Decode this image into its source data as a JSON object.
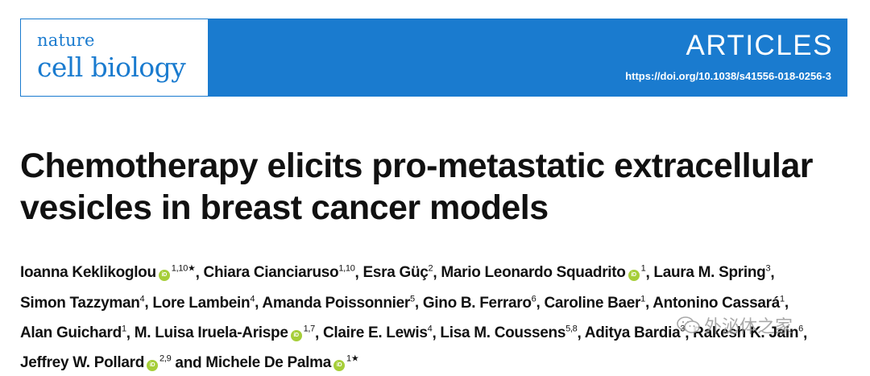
{
  "journal": {
    "line1": "nature",
    "line2": "cell biology"
  },
  "header": {
    "section": "ARTICLES",
    "doi": "https://doi.org/10.1038/s41556-018-0256-3"
  },
  "article": {
    "title": "Chemotherapy elicits pro-metastatic extracellular vesicles in breast cancer models"
  },
  "authors": [
    {
      "name": "Ioanna Keklikoglou",
      "orcid": true,
      "sup": "1,10★",
      "sep": ", "
    },
    {
      "name": "Chiara Ciancia­ruso",
      "orcid": false,
      "sup": "1,10",
      "sep": ", "
    },
    {
      "name": "Esra Güç",
      "orcid": false,
      "sup": "2",
      "sep": ", "
    },
    {
      "name": "Mario Leonardo Squadrito",
      "orcid": true,
      "sup": "1",
      "sep": ", "
    },
    {
      "name": "Laura M. Spring",
      "orcid": false,
      "sup": "3",
      "sep": ", "
    },
    {
      "name": "Simon Tazzyman",
      "orcid": false,
      "sup": "4",
      "sep": ", "
    },
    {
      "name": "Lore Lambein",
      "orcid": false,
      "sup": "4",
      "sep": ", "
    },
    {
      "name": "Amanda Poissonnier",
      "orcid": false,
      "sup": "5",
      "sep": ", "
    },
    {
      "name": "Gino B. Ferraro",
      "orcid": false,
      "sup": "6",
      "sep": ", "
    },
    {
      "name": "Caroline Baer",
      "orcid": false,
      "sup": "1",
      "sep": ", "
    },
    {
      "name": "Antonino Cassará",
      "orcid": false,
      "sup": "1",
      "sep": ", "
    },
    {
      "name": "Alan Guichard",
      "orcid": false,
      "sup": "1",
      "sep": ", "
    },
    {
      "name": "M. Luisa Iruela-Arispe",
      "orcid": true,
      "sup": "1,7",
      "sep": ", "
    },
    {
      "name": "Claire E. Lewis",
      "orcid": false,
      "sup": "4",
      "sep": ", "
    },
    {
      "name": "Lisa M. Coussens",
      "orcid": false,
      "sup": "5,8",
      "sep": ", "
    },
    {
      "name": "Aditya Bardia",
      "orcid": false,
      "sup": "3",
      "sep": ", "
    },
    {
      "name": "Rakesh K. Jain",
      "orcid": false,
      "sup": "6",
      "sep": ", "
    },
    {
      "name": "Jeffrey W. Pollard",
      "orcid": true,
      "sup": "2,9",
      "sep": " and "
    },
    {
      "name": "Michele De Palma",
      "orcid": true,
      "sup": "1★",
      "sep": ""
    }
  ],
  "orcid_glyph": "iD",
  "watermark": {
    "text": "外泌体之家",
    "icon": "wechat-icon"
  }
}
